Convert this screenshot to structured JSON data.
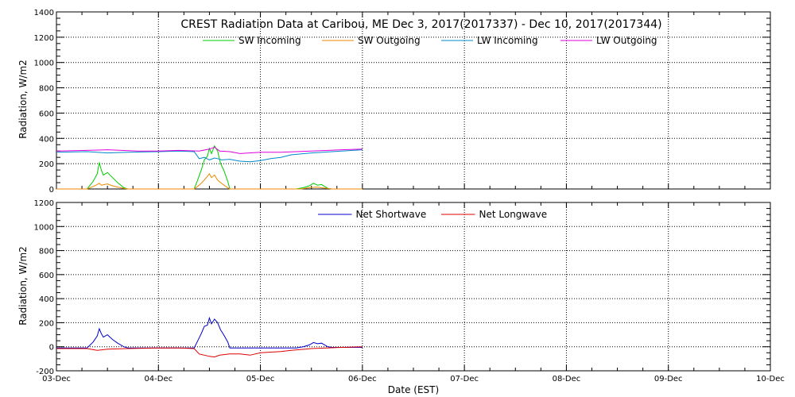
{
  "chart_data": [
    {
      "type": "line",
      "title": "CREST Radiation Data at Caribou, ME   Dec  3, 2017(2017337) - Dec 10, 2017(2017344)",
      "xlabel": "",
      "ylabel": "Radiation, W/m2",
      "x_unit": "days since 03-Dec",
      "xlim": [
        0,
        7
      ],
      "ylim": [
        0,
        1400
      ],
      "yticks": [
        0,
        200,
        400,
        600,
        800,
        1000,
        1200,
        1400
      ],
      "x_ticks": [
        "03-Dec",
        "04-Dec",
        "05-Dec",
        "06-Dec",
        "07-Dec",
        "08-Dec",
        "09-Dec",
        "10-Dec"
      ],
      "grid": true,
      "legend": "top",
      "series": [
        {
          "name": "SW Incoming",
          "color": "#00cc00",
          "x": [
            0,
            0.3,
            0.36,
            0.4,
            0.42,
            0.44,
            0.46,
            0.5,
            0.55,
            0.6,
            0.66,
            0.7,
            1.0,
            1.35,
            1.38,
            1.42,
            1.45,
            1.48,
            1.5,
            1.52,
            1.55,
            1.58,
            1.61,
            1.64,
            1.68,
            1.7,
            2.0,
            2.35,
            2.42,
            2.48,
            2.52,
            2.56,
            2.6,
            2.66,
            2.7,
            3.0
          ],
          "y": [
            0,
            0,
            60,
            120,
            210,
            150,
            110,
            130,
            90,
            50,
            10,
            0,
            0,
            0,
            60,
            150,
            230,
            260,
            320,
            280,
            340,
            300,
            200,
            150,
            60,
            0,
            0,
            0,
            10,
            25,
            45,
            30,
            35,
            5,
            0,
            0
          ]
        },
        {
          "name": "SW Outgoing",
          "color": "#ee8800",
          "x": [
            0,
            0.3,
            0.36,
            0.4,
            0.42,
            0.44,
            0.5,
            0.55,
            0.6,
            0.66,
            0.7,
            1.0,
            1.35,
            1.4,
            1.45,
            1.5,
            1.52,
            1.55,
            1.58,
            1.61,
            1.66,
            1.7,
            2.0,
            2.4,
            2.48,
            2.55,
            2.62,
            2.7,
            3.0
          ],
          "y": [
            0,
            0,
            20,
            35,
            45,
            30,
            40,
            25,
            15,
            5,
            0,
            0,
            0,
            30,
            70,
            120,
            90,
            110,
            70,
            50,
            20,
            0,
            0,
            0,
            10,
            15,
            8,
            0,
            0
          ]
        },
        {
          "name": "LW Incoming",
          "color": "#0088cc",
          "x": [
            0,
            0.3,
            0.5,
            0.7,
            1.0,
            1.2,
            1.35,
            1.4,
            1.45,
            1.5,
            1.55,
            1.58,
            1.62,
            1.7,
            1.8,
            1.9,
            2.0,
            2.1,
            2.2,
            2.3,
            2.5,
            3.0
          ],
          "y": [
            290,
            295,
            285,
            290,
            295,
            300,
            295,
            240,
            250,
            230,
            245,
            240,
            230,
            235,
            220,
            215,
            225,
            240,
            250,
            270,
            285,
            310
          ]
        },
        {
          "name": "LW Outgoing",
          "color": "#dd00dd",
          "x": [
            0,
            0.3,
            0.5,
            0.8,
            1.0,
            1.2,
            1.4,
            1.5,
            1.55,
            1.6,
            1.7,
            1.8,
            2.0,
            2.2,
            2.5,
            2.8,
            3.0
          ],
          "y": [
            300,
            305,
            310,
            300,
            300,
            305,
            300,
            315,
            330,
            300,
            295,
            280,
            290,
            290,
            300,
            310,
            315
          ]
        }
      ]
    },
    {
      "type": "line",
      "title": "",
      "xlabel": "Date (EST)",
      "ylabel": "Radiation, W/m2",
      "x_unit": "days since 03-Dec",
      "xlim": [
        0,
        7
      ],
      "ylim": [
        -200,
        1200
      ],
      "yticks": [
        -200,
        0,
        200,
        400,
        600,
        800,
        1000,
        1200
      ],
      "x_ticks": [
        "03-Dec",
        "04-Dec",
        "05-Dec",
        "06-Dec",
        "07-Dec",
        "08-Dec",
        "09-Dec",
        "10-Dec"
      ],
      "grid": true,
      "legend": "top",
      "series": [
        {
          "name": "Net Shortwave",
          "color": "#0000cc",
          "x": [
            0,
            0.3,
            0.36,
            0.4,
            0.42,
            0.44,
            0.46,
            0.5,
            0.55,
            0.6,
            0.66,
            0.7,
            1.0,
            1.35,
            1.38,
            1.42,
            1.45,
            1.48,
            1.5,
            1.52,
            1.55,
            1.58,
            1.61,
            1.64,
            1.68,
            1.7,
            2.0,
            2.35,
            2.42,
            2.48,
            2.52,
            2.56,
            2.6,
            2.66,
            2.7,
            3.0
          ],
          "y": [
            -10,
            -10,
            40,
            90,
            150,
            110,
            80,
            100,
            60,
            30,
            0,
            -10,
            -10,
            -10,
            40,
            110,
            170,
            180,
            240,
            190,
            230,
            200,
            140,
            100,
            40,
            -10,
            -10,
            -10,
            0,
            15,
            35,
            25,
            30,
            0,
            -5,
            -5
          ]
        },
        {
          "name": "Net Longwave",
          "color": "#dd0000",
          "x": [
            0,
            0.3,
            0.4,
            0.5,
            0.7,
            1.0,
            1.2,
            1.35,
            1.4,
            1.45,
            1.5,
            1.55,
            1.6,
            1.7,
            1.8,
            1.9,
            2.0,
            2.1,
            2.2,
            2.3,
            2.5,
            2.8,
            3.0
          ],
          "y": [
            -15,
            -15,
            -30,
            -20,
            -15,
            -10,
            -10,
            -15,
            -60,
            -70,
            -80,
            -85,
            -70,
            -60,
            -60,
            -70,
            -50,
            -45,
            -40,
            -30,
            -15,
            -5,
            0
          ]
        }
      ]
    }
  ]
}
